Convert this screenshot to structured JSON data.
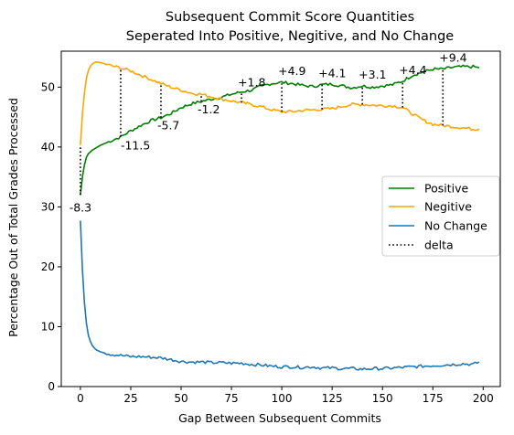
{
  "chart_data": {
    "type": "line",
    "title": "Subsequent Commit Score Quantities",
    "subtitle": "Seperated Into Positive, Negitive, and No Change",
    "xlabel": "Gap Between Subsequent Commits",
    "ylabel": "Percentage Out of Total Grades Processed",
    "xlim": [
      -9.5,
      208.5
    ],
    "ylim": [
      0,
      56
    ],
    "xticks": [
      0,
      25,
      50,
      75,
      100,
      125,
      150,
      175,
      200
    ],
    "yticks": [
      0,
      10,
      20,
      30,
      40,
      50
    ],
    "grid": false,
    "legend_position": "center-right",
    "series": [
      {
        "name": "Positive",
        "color": "#008000",
        "x": [
          0,
          1,
          2,
          3,
          4,
          6,
          8,
          10,
          15,
          20,
          25,
          30,
          35,
          40,
          45,
          50,
          55,
          60,
          65,
          70,
          75,
          80,
          85,
          90,
          95,
          100,
          105,
          110,
          115,
          120,
          125,
          130,
          135,
          140,
          145,
          150,
          155,
          160,
          165,
          170,
          175,
          180,
          185,
          190,
          195,
          198
        ],
        "values": [
          32.0,
          35.0,
          37.0,
          38.3,
          38.9,
          39.5,
          39.9,
          40.3,
          41.0,
          41.7,
          42.7,
          43.6,
          44.4,
          44.9,
          45.6,
          46.6,
          47.2,
          47.6,
          48.0,
          48.3,
          48.8,
          49.2,
          49.5,
          50.2,
          50.6,
          50.8,
          50.6,
          50.3,
          50.1,
          50.4,
          50.5,
          50.2,
          49.9,
          50.2,
          50.0,
          50.2,
          50.4,
          51.0,
          52.0,
          52.5,
          53.0,
          53.0,
          53.3,
          53.4,
          53.4,
          53.2
        ]
      },
      {
        "name": "Negitive",
        "color": "#FFA500",
        "x": [
          0,
          1,
          2,
          3,
          4,
          5,
          6,
          7,
          8,
          10,
          12,
          15,
          20,
          25,
          30,
          35,
          40,
          45,
          50,
          55,
          60,
          65,
          70,
          75,
          80,
          85,
          90,
          95,
          100,
          105,
          110,
          115,
          120,
          125,
          130,
          135,
          140,
          145,
          150,
          155,
          160,
          165,
          170,
          175,
          180,
          185,
          190,
          195,
          198
        ],
        "values": [
          40.3,
          45.5,
          49.0,
          51.5,
          52.8,
          53.5,
          53.9,
          54.1,
          54.2,
          54.1,
          53.9,
          53.6,
          53.2,
          52.7,
          52.0,
          51.3,
          50.6,
          50.0,
          49.5,
          49.0,
          48.8,
          48.4,
          48.0,
          47.7,
          47.4,
          47.1,
          46.7,
          46.2,
          45.9,
          45.9,
          46.1,
          46.2,
          46.3,
          46.4,
          46.8,
          47.1,
          47.1,
          47.0,
          46.9,
          46.9,
          46.6,
          45.5,
          44.5,
          43.8,
          43.6,
          43.4,
          43.2,
          43.0,
          43.0
        ]
      },
      {
        "name": "No Change",
        "color": "#1F77B4",
        "x": [
          0,
          1,
          2,
          3,
          4,
          5,
          6,
          7,
          8,
          10,
          12,
          15,
          20,
          25,
          30,
          35,
          40,
          45,
          50,
          55,
          60,
          65,
          70,
          75,
          80,
          85,
          90,
          95,
          100,
          105,
          110,
          115,
          120,
          125,
          130,
          135,
          140,
          145,
          150,
          155,
          160,
          165,
          170,
          175,
          180,
          185,
          190,
          195,
          198
        ],
        "values": [
          27.7,
          19.5,
          14.0,
          10.5,
          8.5,
          7.5,
          6.8,
          6.4,
          6.1,
          5.8,
          5.6,
          5.4,
          5.2,
          5.0,
          5.0,
          4.9,
          4.8,
          4.5,
          4.2,
          4.1,
          4.1,
          4.0,
          4.0,
          3.9,
          3.9,
          3.7,
          3.6,
          3.4,
          3.3,
          3.3,
          3.2,
          3.3,
          3.1,
          3.1,
          3.0,
          3.0,
          2.9,
          3.0,
          3.0,
          3.1,
          3.2,
          3.3,
          3.4,
          3.5,
          3.6,
          3.7,
          3.8,
          3.7,
          4.1
        ]
      }
    ],
    "delta": {
      "name": "delta",
      "style": "dotted",
      "color": "#000000",
      "segments": [
        {
          "x": 0,
          "y1": 32.0,
          "y2": 40.3,
          "label": "-8.3"
        },
        {
          "x": 20,
          "y1": 41.7,
          "y2": 53.2,
          "label": "-11.5"
        },
        {
          "x": 40,
          "y1": 44.9,
          "y2": 50.6,
          "label": "-5.7"
        },
        {
          "x": 60,
          "y1": 47.6,
          "y2": 48.8,
          "label": "-1.2"
        },
        {
          "x": 80,
          "y1": 47.4,
          "y2": 49.2,
          "label": "+1.8"
        },
        {
          "x": 100,
          "y1": 45.9,
          "y2": 50.8,
          "label": "+4.9"
        },
        {
          "x": 120,
          "y1": 46.3,
          "y2": 50.4,
          "label": "+4.1"
        },
        {
          "x": 140,
          "y1": 47.1,
          "y2": 50.2,
          "label": "+3.1"
        },
        {
          "x": 160,
          "y1": 46.6,
          "y2": 51.0,
          "label": "+4.4"
        },
        {
          "x": 180,
          "y1": 43.6,
          "y2": 53.0,
          "label": "+9.4"
        }
      ]
    },
    "legend": [
      "Positive",
      "Negitive",
      "No Change",
      "delta"
    ]
  }
}
